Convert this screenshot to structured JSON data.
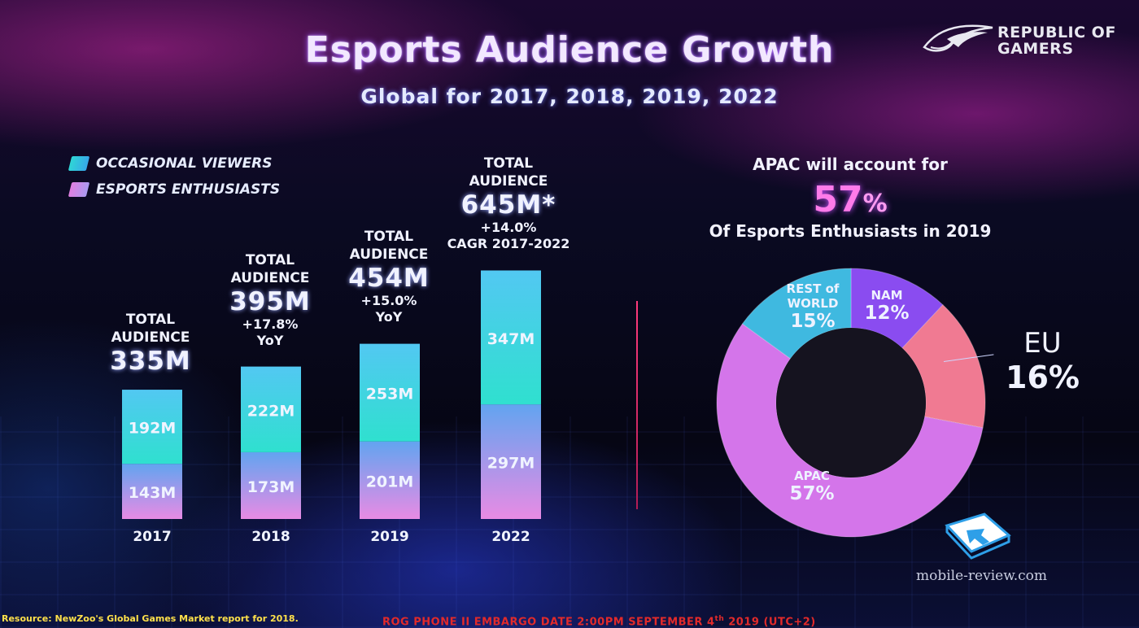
{
  "slide": {
    "title": "Esports Audience Growth",
    "subtitle": "Global for 2017, 2018, 2019, 2022",
    "brand": {
      "line1": "REPUBLIC OF",
      "line2": "GAMERS"
    },
    "watermark": "mobile-review.com",
    "source_note": "Resource: NewZoo's Global Games Market report for 2018.",
    "embargo_note_before": "ROG PHONE II EMBARGO DATE 2:00PM SEPTEMBER 4",
    "embargo_note_sup": "th",
    "embargo_note_after": " 2019 (UTC+2)"
  },
  "legend": [
    {
      "label": "OCCASIONAL VIEWERS",
      "color": "#2fd6d6"
    },
    {
      "label": "ESPORTS ENTHUSIASTS",
      "color": "#e07fe0"
    }
  ],
  "annotations": [
    {
      "line1": "TOTAL",
      "line2": "AUDIENCE",
      "value": "335M",
      "note1": "",
      "note2": ""
    },
    {
      "line1": "TOTAL",
      "line2": "AUDIENCE",
      "value": "395M",
      "note1": "+17.8%",
      "note2": "YoY"
    },
    {
      "line1": "TOTAL",
      "line2": "AUDIENCE",
      "value": "454M",
      "note1": "+15.0%",
      "note2": "YoY"
    },
    {
      "line1": "TOTAL",
      "line2": "AUDIENCE",
      "value": "645M*",
      "note1": "+14.0%",
      "note2": "CAGR 2017-2022"
    }
  ],
  "apac": {
    "heading": "APAC will account for",
    "percent": "57",
    "percent_sign": "%",
    "subheading": "Of Esports Enthusiasts in 2019"
  },
  "donut_labels": {
    "rest": {
      "line1": "REST of",
      "line2": "WORLD",
      "pct": "15%"
    },
    "nam": {
      "name": "NAM",
      "pct": "12%"
    },
    "eu": {
      "name": "EU",
      "pct": "16%"
    },
    "apac": {
      "name": "APAC",
      "pct": "57%"
    }
  },
  "chart_data": [
    {
      "type": "bar",
      "stacked": true,
      "categories": [
        "2017",
        "2018",
        "2019",
        "2022"
      ],
      "series": [
        {
          "name": "OCCASIONAL VIEWERS",
          "values": [
            192,
            222,
            253,
            347
          ],
          "labels": [
            "192M",
            "222M",
            "253M",
            "347M"
          ],
          "color": "#2fd6d6"
        },
        {
          "name": "ESPORTS ENTHUSIASTS",
          "values": [
            143,
            173,
            201,
            297
          ],
          "labels": [
            "143M",
            "173M",
            "201M",
            "297M"
          ],
          "color": "#e07fe0"
        }
      ],
      "totals": [
        335,
        395,
        454,
        645
      ],
      "ylim": [
        0,
        700
      ],
      "grid": false,
      "legend": "top-left"
    },
    {
      "type": "pie",
      "donut": true,
      "slices": [
        {
          "label": "NAM",
          "value": 12,
          "color": "#8a4cf0"
        },
        {
          "label": "EU",
          "value": 16,
          "color": "#f07a92"
        },
        {
          "label": "APAC",
          "value": 57,
          "color": "#d475ea"
        },
        {
          "label": "REST of WORLD",
          "value": 15,
          "color": "#3fb9e0"
        }
      ]
    }
  ]
}
